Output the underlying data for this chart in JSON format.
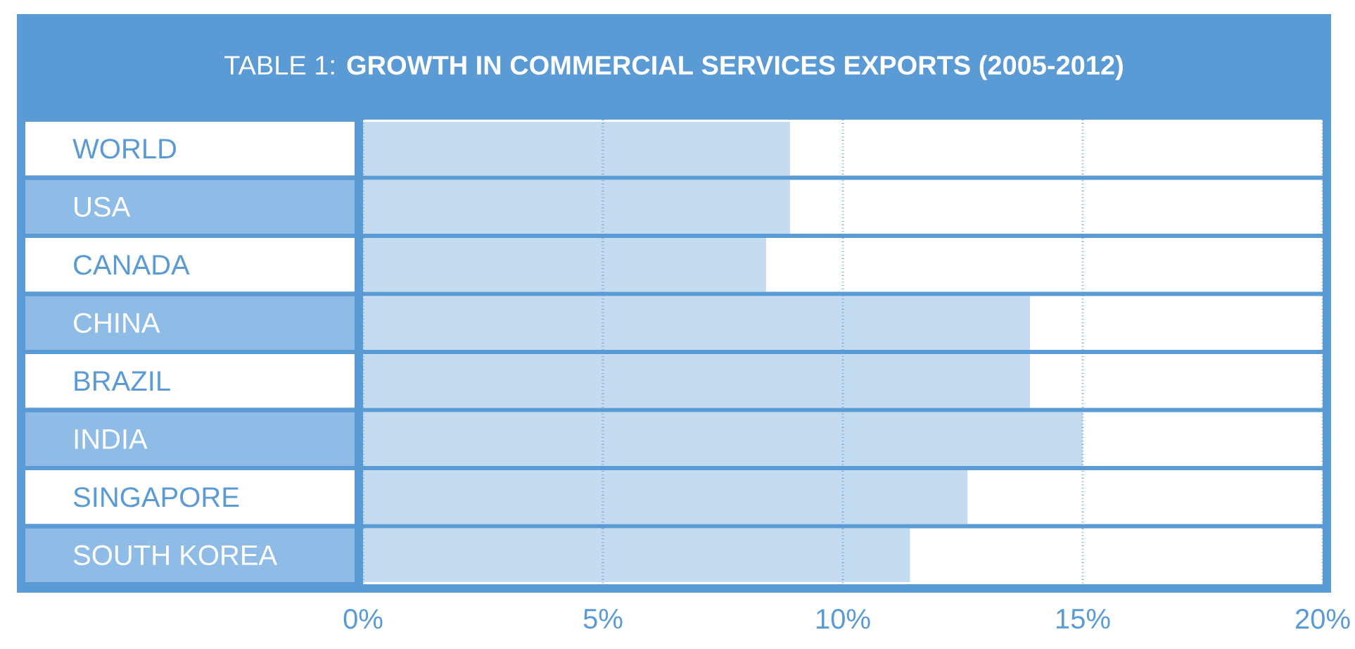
{
  "chart_data": {
    "type": "bar",
    "orientation": "horizontal",
    "title": "TABLE 1: **GROWTH IN COMMERCIAL SERVICES EXPORTS (2005-2012)**",
    "categories": [
      "WORLD",
      "USA",
      "CANADA",
      "CHINA",
      "BRAZIL",
      "INDIA",
      "SINGAPORE",
      "SOUTH KOREA"
    ],
    "values": [
      8.9,
      8.9,
      8.4,
      13.9,
      13.9,
      15.0,
      12.6,
      11.4
    ],
    "color": "#c5dcf0",
    "xlim": [
      0,
      20
    ],
    "xticks": [
      {
        "value": 0,
        "label": "0%"
      },
      {
        "value": 5,
        "label": "5%"
      },
      {
        "value": 10,
        "label": "10%"
      },
      {
        "value": 15,
        "label": "15%"
      },
      {
        "value": 20,
        "label": "20%"
      }
    ],
    "grid": "x"
  }
}
